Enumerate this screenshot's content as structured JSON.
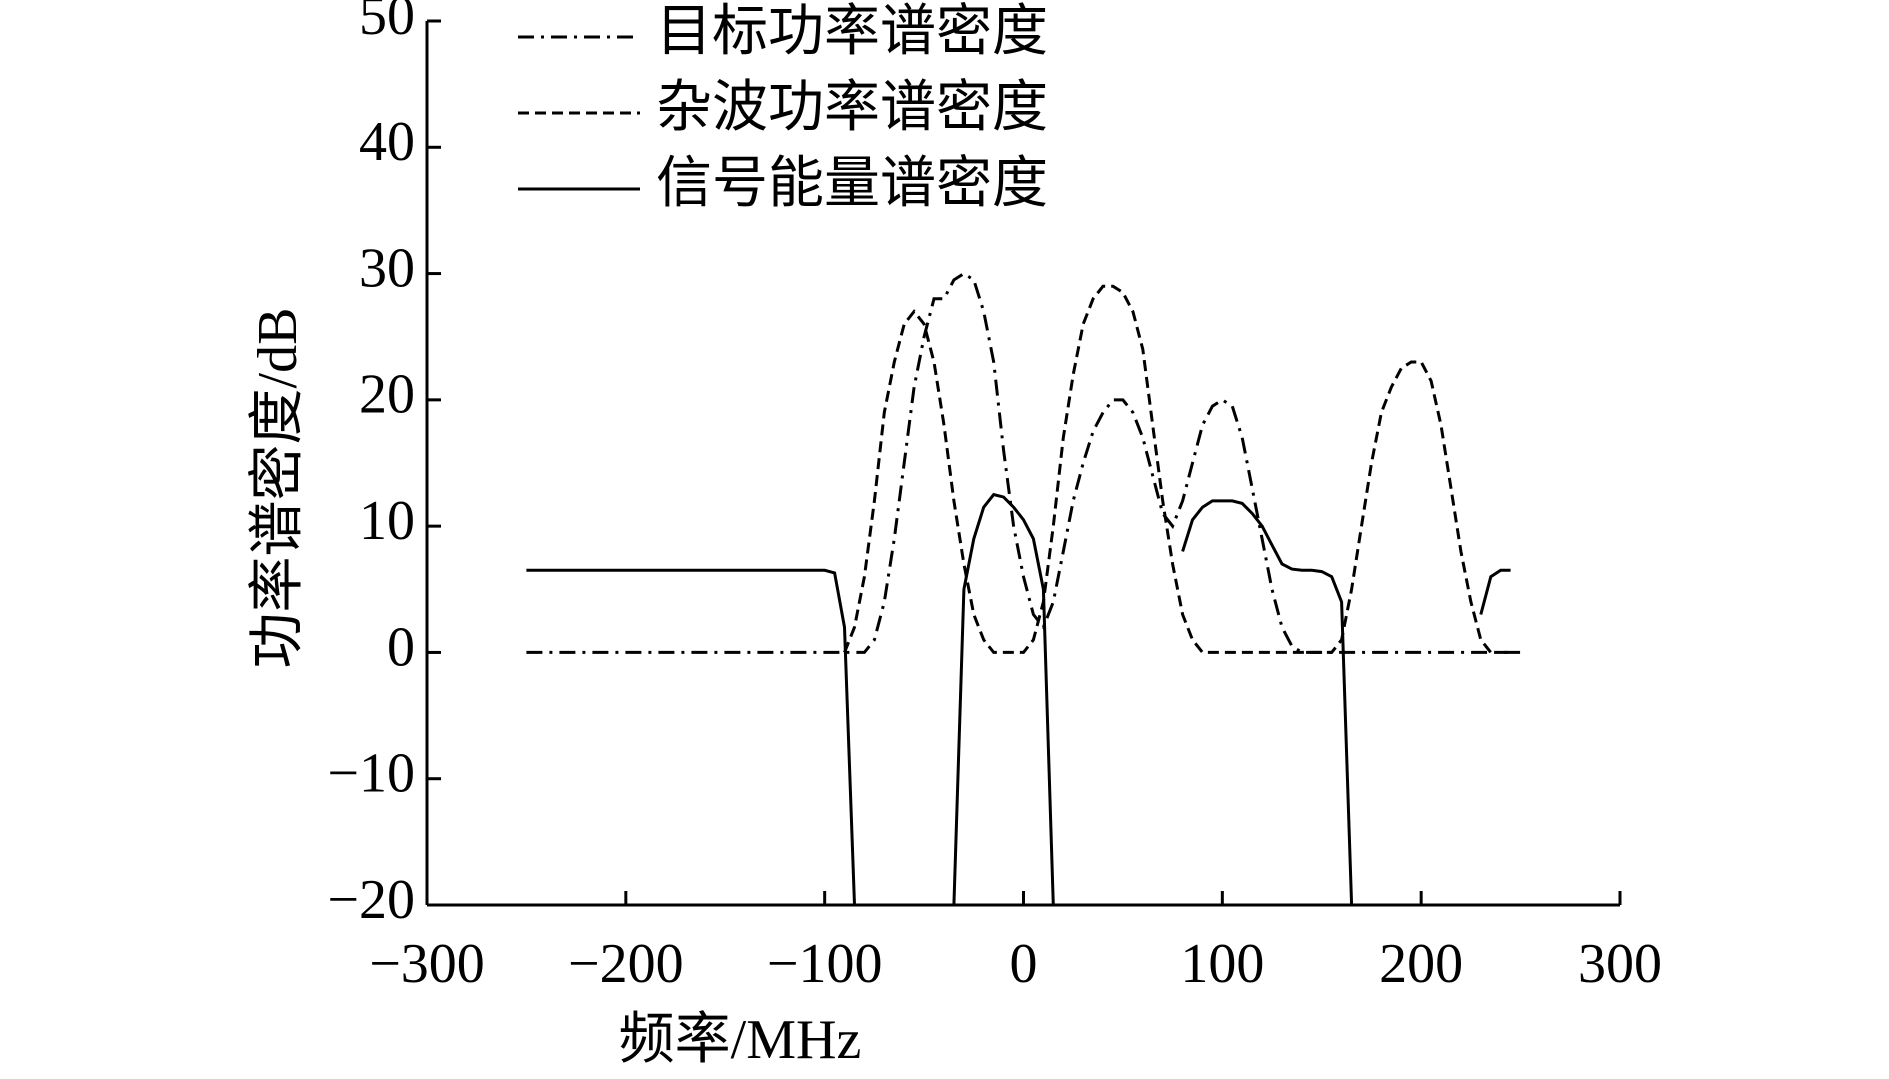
{
  "chart_data": {
    "type": "line",
    "y_label": "功率谱密度/dB",
    "x_label": "频率/MHz",
    "x": [
      -250,
      -245,
      -240,
      -235,
      -230,
      -225,
      -220,
      -215,
      -210,
      -205,
      -200,
      -195,
      -190,
      -185,
      -180,
      -175,
      -170,
      -165,
      -160,
      -155,
      -150,
      -145,
      -140,
      -135,
      -130,
      -125,
      -120,
      -115,
      -110,
      -105,
      -100,
      -95,
      -90,
      -85,
      -80,
      -75,
      -70,
      -65,
      -60,
      -55,
      -50,
      -45,
      -40,
      -35,
      -30,
      -25,
      -20,
      -15,
      -10,
      -5,
      0,
      5,
      10,
      15,
      20,
      25,
      30,
      35,
      40,
      45,
      50,
      55,
      60,
      65,
      70,
      75,
      80,
      85,
      90,
      95,
      100,
      105,
      110,
      115,
      120,
      125,
      130,
      135,
      140,
      145,
      150,
      155,
      160,
      165,
      170,
      175,
      180,
      185,
      190,
      195,
      200,
      205,
      210,
      215,
      220,
      225,
      230,
      235,
      240,
      245,
      250
    ],
    "series": [
      {
        "name": "目标功率谱密度",
        "color": "#000000",
        "dash": "dashdot",
        "values": [
          0,
          0,
          0,
          0,
          0,
          0,
          0,
          0,
          0,
          0,
          0,
          0,
          0,
          0,
          0,
          0,
          0,
          0,
          0,
          0,
          0,
          0,
          0,
          0,
          0,
          0,
          0,
          0,
          0,
          0,
          0,
          0,
          0,
          0,
          0,
          1,
          4,
          9,
          15,
          21,
          25,
          28,
          28,
          29.5,
          30,
          29.5,
          27,
          23,
          16,
          10,
          6,
          3,
          2,
          4,
          8,
          12,
          15,
          17.5,
          19,
          20,
          20,
          19,
          17,
          14,
          11,
          10,
          12,
          15,
          18,
          19.5,
          20,
          19.5,
          17,
          13,
          9,
          5,
          2,
          0.5,
          0,
          0,
          0,
          0,
          0,
          0,
          0,
          0,
          0,
          0,
          0,
          0,
          0,
          0,
          0,
          0,
          0,
          0,
          0,
          0,
          0,
          0,
          0
        ]
      },
      {
        "name": "杂波功率谱密度",
        "color": "#000000",
        "dash": "dash",
        "values": [
          null,
          null,
          null,
          null,
          null,
          null,
          null,
          null,
          null,
          null,
          null,
          null,
          null,
          null,
          null,
          null,
          null,
          null,
          null,
          null,
          null,
          null,
          null,
          null,
          null,
          null,
          null,
          null,
          null,
          null,
          null,
          null,
          0,
          2,
          6,
          12,
          19,
          23,
          26,
          27,
          26,
          23,
          18,
          12,
          7,
          3,
          1,
          0,
          0,
          0,
          0,
          1,
          4,
          10,
          17,
          22,
          26,
          28,
          29,
          29,
          28.5,
          27,
          24,
          18,
          12,
          7,
          3,
          1,
          0,
          0,
          0,
          0,
          0,
          0,
          0,
          0,
          0,
          0,
          0,
          0,
          0,
          0,
          1,
          5,
          10,
          15,
          19,
          21,
          22.5,
          23,
          23,
          21.5,
          18,
          13,
          8,
          4,
          1,
          0,
          0,
          0,
          null
        ]
      },
      {
        "name": "信号能量谱密度",
        "color": "#000000",
        "dash": "solid",
        "values": [
          6.5,
          6.5,
          6.5,
          6.5,
          6.5,
          6.5,
          6.5,
          6.5,
          6.5,
          6.5,
          6.5,
          6.5,
          6.5,
          6.5,
          6.5,
          6.5,
          6.5,
          6.5,
          6.5,
          6.5,
          6.5,
          6.5,
          6.5,
          6.5,
          6.5,
          6.5,
          6.5,
          6.5,
          6.5,
          6.5,
          6.5,
          6.3,
          2,
          -20,
          null,
          null,
          null,
          null,
          null,
          null,
          null,
          null,
          null,
          -20,
          5,
          9,
          11.5,
          12.5,
          12.3,
          11.5,
          10.5,
          9,
          5,
          -20,
          null,
          null,
          null,
          null,
          null,
          null,
          null,
          null,
          null,
          null,
          null,
          null,
          8,
          10.5,
          11.5,
          12,
          12,
          12,
          11.8,
          11,
          10,
          8.5,
          7,
          6.6,
          6.5,
          6.5,
          6.4,
          6,
          4,
          -20,
          null,
          null,
          null,
          null,
          null,
          null,
          null,
          null,
          null,
          null,
          null,
          null,
          3,
          6,
          6.5,
          6.5,
          null
        ]
      }
    ],
    "xlim": [
      -300,
      300
    ],
    "xticks": [
      {
        "value": -300,
        "label": "−300"
      },
      {
        "value": -200,
        "label": "−200"
      },
      {
        "value": -100,
        "label": "−100"
      },
      0,
      100,
      200,
      300
    ],
    "ylim": [
      -20,
      50
    ],
    "yticks": [
      {
        "value": -20,
        "label": "−20"
      },
      {
        "value": -10,
        "label": "−10"
      },
      0,
      10,
      20,
      30,
      40,
      50
    ],
    "grid": false,
    "legend": "top-left"
  }
}
